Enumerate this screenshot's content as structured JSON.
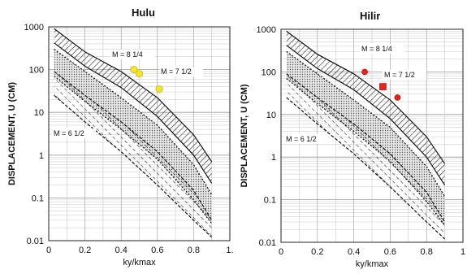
{
  "chart_data": [
    {
      "type": "area",
      "title": "Hulu",
      "xlabel": "ky/kmax",
      "ylabel": "DISPLACEMENT, U (CM)",
      "y_scale": "log",
      "xlim": [
        0,
        1.0
      ],
      "ylim": [
        0.01,
        1000
      ],
      "x_ticks": [
        "0",
        "0.2",
        "0.4",
        "0.6",
        "0.8",
        "1."
      ],
      "y_ticks": [
        "0.01",
        "0.1",
        "1",
        "10",
        "100",
        "1000"
      ],
      "grid": true,
      "bands": [
        {
          "name": "M = 8 1/4",
          "x": [
            0.03,
            0.2,
            0.4,
            0.6,
            0.8,
            0.9
          ],
          "upper": [
            900,
            260,
            90,
            22,
            3,
            0.7
          ],
          "lower": [
            420,
            120,
            38,
            8,
            1.0,
            0.22
          ],
          "hatch": "diagonal"
        },
        {
          "name": "M = 7 1/2",
          "x": [
            0.03,
            0.2,
            0.4,
            0.6,
            0.8,
            0.9
          ],
          "upper": [
            300,
            90,
            22,
            5,
            0.6,
            0.12
          ],
          "lower": [
            70,
            18,
            4,
            0.8,
            0.09,
            0.025
          ],
          "hatch": "dotted"
        },
        {
          "name": "M = 6 1/2",
          "x": [
            0.03,
            0.2,
            0.4,
            0.6,
            0.8,
            0.9
          ],
          "upper": [
            90,
            25,
            6,
            1.2,
            0.15,
            0.03
          ],
          "lower": [
            25,
            6,
            1.2,
            0.2,
            0.03,
            0.012
          ],
          "hatch": "dashed"
        }
      ],
      "points": {
        "color": "#f2e62a",
        "marker": "circle",
        "x": [
          0.47,
          0.5,
          0.61
        ],
        "y": [
          100,
          80,
          35
        ]
      }
    },
    {
      "type": "area",
      "title": "Hilir",
      "xlabel": "ky/kmax",
      "ylabel": "DISPLACEMENT, U (CM)",
      "y_scale": "log",
      "xlim": [
        0,
        1.0
      ],
      "ylim": [
        0.01,
        1000
      ],
      "x_ticks": [
        "0",
        "0.2",
        "0.4",
        "0.6",
        "0.8",
        "1"
      ],
      "y_ticks": [
        "0.01",
        "0.1",
        "1",
        "10",
        "100",
        "1000"
      ],
      "grid": true,
      "bands": [
        {
          "name": "M = 8 1/4",
          "x": [
            0.03,
            0.2,
            0.4,
            0.6,
            0.8,
            0.9
          ],
          "upper": [
            900,
            260,
            90,
            22,
            3,
            0.7
          ],
          "lower": [
            420,
            120,
            38,
            8,
            1.0,
            0.22
          ],
          "hatch": "diagonal"
        },
        {
          "name": "M = 7 1/2",
          "x": [
            0.03,
            0.2,
            0.4,
            0.6,
            0.8,
            0.9
          ],
          "upper": [
            300,
            90,
            22,
            5,
            0.6,
            0.12
          ],
          "lower": [
            70,
            18,
            4,
            0.8,
            0.09,
            0.025
          ],
          "hatch": "dotted"
        },
        {
          "name": "M = 6 1/2",
          "x": [
            0.03,
            0.2,
            0.4,
            0.6,
            0.8,
            0.9
          ],
          "upper": [
            90,
            25,
            6,
            1.2,
            0.15,
            0.03
          ],
          "lower": [
            25,
            6,
            1.2,
            0.2,
            0.03,
            0.012
          ],
          "hatch": "dashed"
        }
      ],
      "points": {
        "color": "#e8231c",
        "marker": "mixed",
        "x": [
          0.46,
          0.56,
          0.64
        ],
        "y": [
          100,
          45,
          25
        ],
        "markers": [
          "circle",
          "square",
          "circle"
        ]
      }
    }
  ]
}
